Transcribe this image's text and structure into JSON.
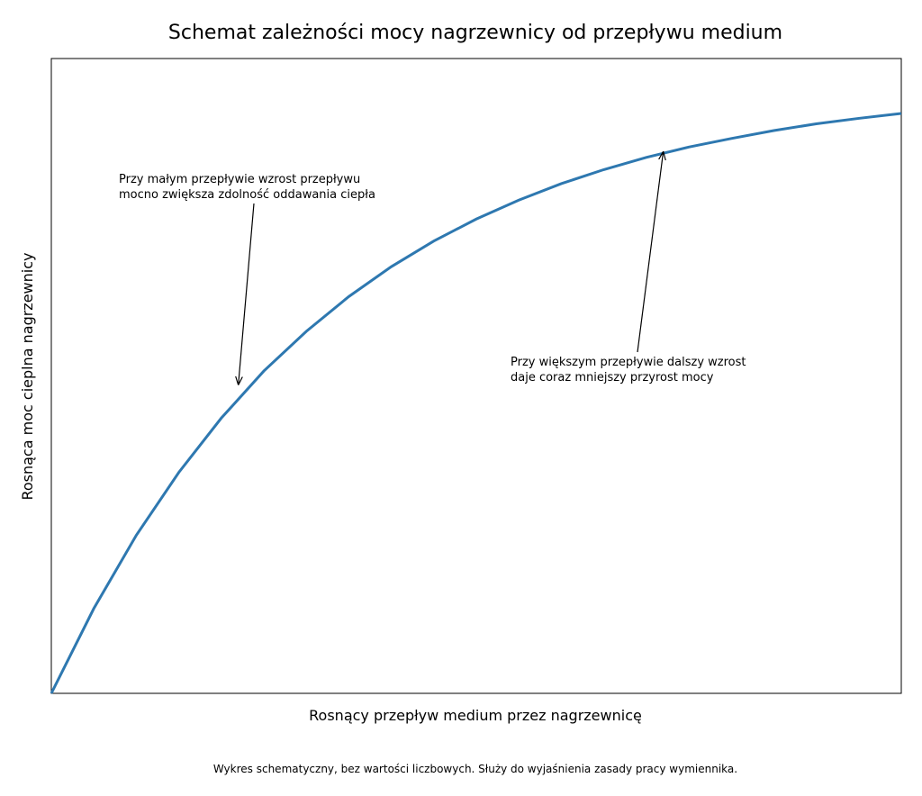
{
  "chart_data": {
    "type": "line",
    "title": "Schemat zależności mocy nagrzewnicy od przepływu medium",
    "xlabel": "Rosnący przepływ medium przez nagrzewnicę",
    "ylabel": "Rosnąca moc cieplna nagrzewnicy",
    "footnote": "Wykres schematyczny, bez wartości liczbowych. Służy do wyjaśnienia zasady pracy wymiennika.",
    "x": [
      0,
      0.5,
      1,
      1.5,
      2,
      2.5,
      3,
      3.5,
      4,
      4.5,
      5,
      5.5,
      6,
      6.5,
      7,
      7.5,
      8,
      8.5,
      9,
      9.5,
      10
    ],
    "series": [
      {
        "color": "#2e78b0",
        "values": [
          0,
          0.139,
          0.259,
          0.362,
          0.451,
          0.528,
          0.593,
          0.65,
          0.699,
          0.741,
          0.777,
          0.808,
          0.835,
          0.858,
          0.878,
          0.895,
          0.909,
          0.922,
          0.933,
          0.942,
          0.95
        ]
      }
    ],
    "xlim": [
      0,
      10
    ],
    "ylim": [
      0,
      1.04
    ],
    "annotations": [
      {
        "lines": [
          "Przy małym przepływie wzrost przepływu",
          "mocno zwiększa zdolność oddawania ciepła"
        ],
        "xy": [
          2.2,
          0.505
        ]
      },
      {
        "lines": [
          "Przy większym przepływie dalszy wzrost",
          "daje coraz mniejszy przyrost mocy"
        ],
        "xy": [
          7.2,
          0.888
        ]
      }
    ]
  }
}
